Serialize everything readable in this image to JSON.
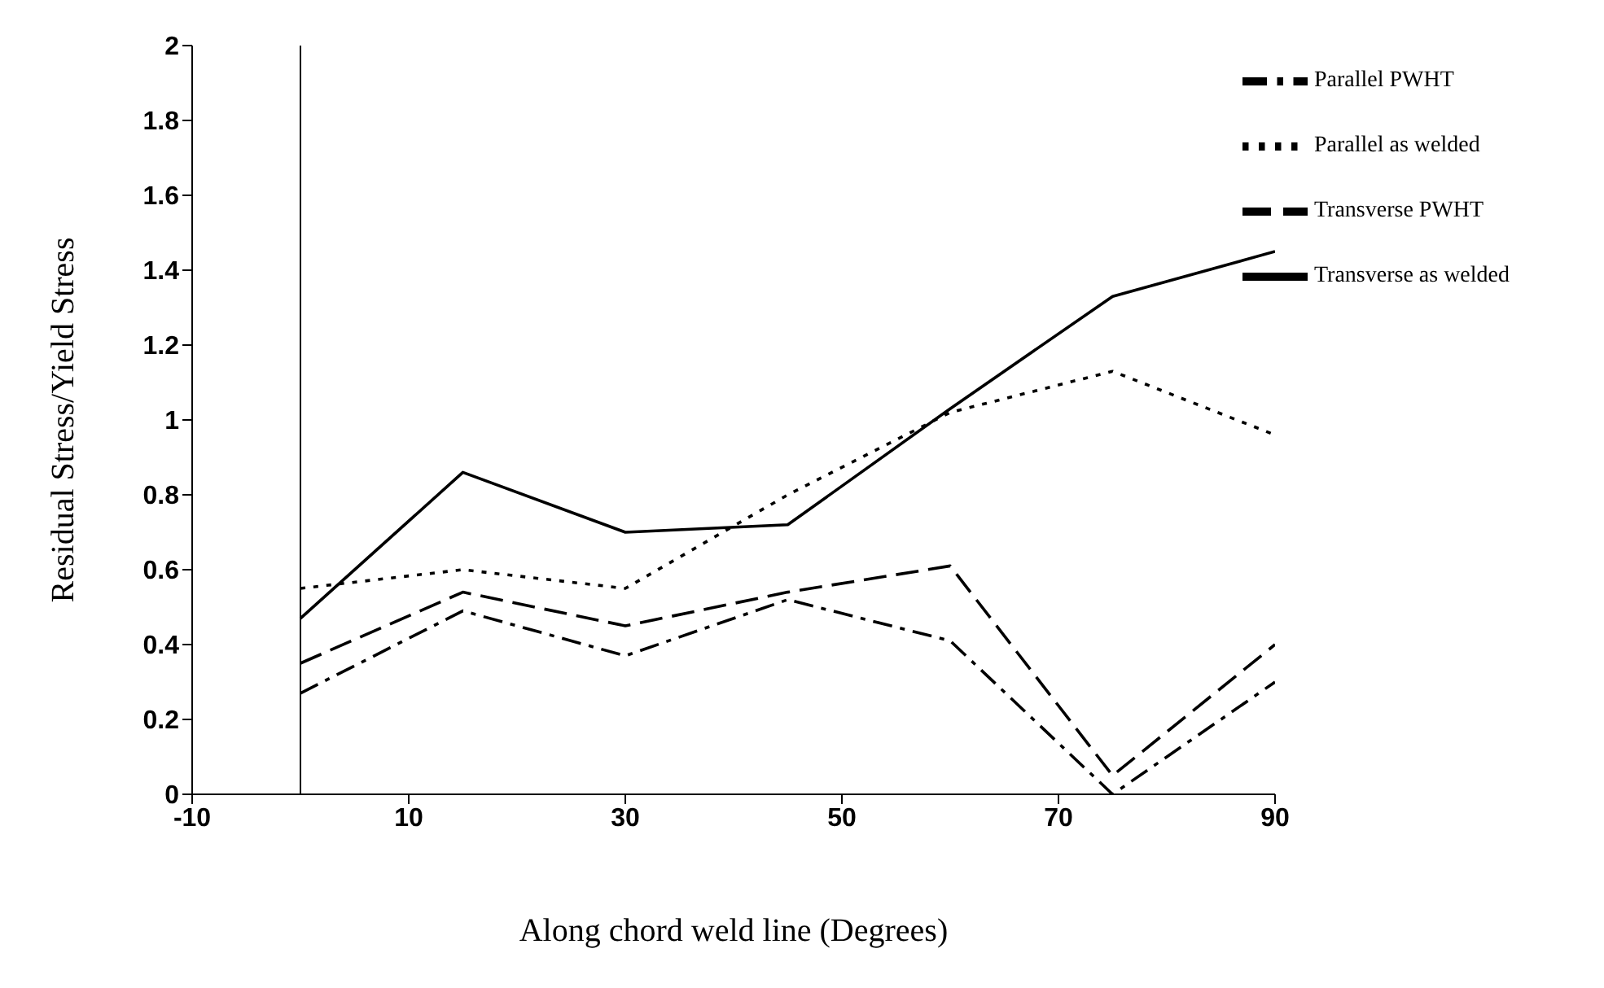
{
  "chart_data": {
    "type": "line",
    "xlabel": "Along chord weld line (Degrees)",
    "ylabel": "Residual Stress/Yield Stress",
    "x": [
      0,
      15,
      30,
      45,
      60,
      75,
      90
    ],
    "series": [
      {
        "name": "Transverse as welded",
        "color": "#000000",
        "line_style": "solid",
        "values": [
          0.47,
          0.86,
          0.7,
          0.72,
          1.03,
          1.33,
          1.45
        ]
      },
      {
        "name": "Parallel as welded",
        "color": "#000000",
        "line_style": "dotted",
        "values": [
          0.55,
          0.6,
          0.55,
          0.8,
          1.02,
          1.13,
          0.96
        ]
      },
      {
        "name": "Transverse PWHT",
        "color": "#000000",
        "line_style": "dashed",
        "values": [
          0.35,
          0.54,
          0.45,
          0.54,
          0.61,
          0.05,
          0.4
        ]
      },
      {
        "name": "Parallel PWHT",
        "color": "#000000",
        "line_style": "dashdot",
        "values": [
          0.27,
          0.49,
          0.37,
          0.52,
          0.41,
          0.0,
          0.3
        ]
      }
    ],
    "xlim": [
      -10,
      90
    ],
    "xticks": [
      -10,
      10,
      30,
      50,
      70,
      90
    ],
    "ylim": [
      0,
      2
    ],
    "yticks": [
      0,
      0.2,
      0.4,
      0.6,
      0.8,
      1,
      1.2,
      1.4,
      1.6,
      1.8,
      2
    ],
    "ref_lines": [
      {
        "axis": "x",
        "value": 0,
        "color": "#000000"
      }
    ],
    "grid": false,
    "legend": "top right",
    "marker": "none"
  }
}
